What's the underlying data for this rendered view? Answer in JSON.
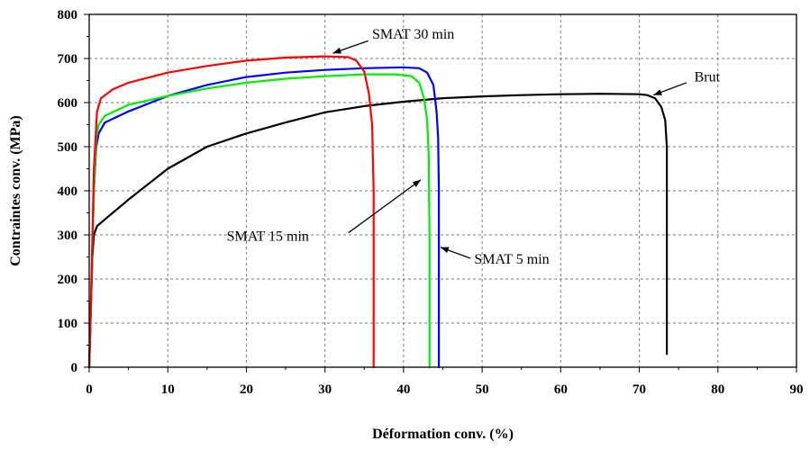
{
  "chart_data": {
    "type": "line",
    "title": "",
    "xlabel": "Déformation conv. (%)",
    "ylabel": "Contraintes conv. (MPa)",
    "xlim": [
      0,
      90
    ],
    "ylim": [
      0,
      800
    ],
    "xticks": [
      0,
      10,
      20,
      30,
      40,
      50,
      60,
      70,
      80,
      90
    ],
    "yticks": [
      0,
      100,
      200,
      300,
      400,
      500,
      600,
      700,
      800
    ],
    "grid": true,
    "series": [
      {
        "name": "Brut",
        "color": "#000000",
        "points": [
          [
            0,
            0
          ],
          [
            0.2,
            120
          ],
          [
            0.4,
            250
          ],
          [
            0.6,
            300
          ],
          [
            1,
            320
          ],
          [
            2,
            335
          ],
          [
            5,
            380
          ],
          [
            10,
            450
          ],
          [
            15,
            500
          ],
          [
            20,
            530
          ],
          [
            25,
            555
          ],
          [
            30,
            578
          ],
          [
            35,
            592
          ],
          [
            40,
            602
          ],
          [
            45,
            610
          ],
          [
            50,
            614
          ],
          [
            55,
            617
          ],
          [
            60,
            619
          ],
          [
            65,
            620
          ],
          [
            70,
            619
          ],
          [
            71,
            617
          ],
          [
            72,
            610
          ],
          [
            72.8,
            590
          ],
          [
            73.3,
            560
          ],
          [
            73.5,
            500
          ],
          [
            73.5,
            300
          ],
          [
            73.5,
            80
          ],
          [
            73.5,
            30
          ]
        ]
      },
      {
        "name": "SMAT 5 min",
        "color": "#0000ff",
        "points": [
          [
            0,
            0
          ],
          [
            0.3,
            200
          ],
          [
            0.6,
            400
          ],
          [
            0.9,
            500
          ],
          [
            1.2,
            530
          ],
          [
            2,
            555
          ],
          [
            5,
            580
          ],
          [
            10,
            615
          ],
          [
            15,
            640
          ],
          [
            20,
            658
          ],
          [
            25,
            668
          ],
          [
            30,
            674
          ],
          [
            35,
            678
          ],
          [
            40,
            680
          ],
          [
            42,
            678
          ],
          [
            43,
            668
          ],
          [
            43.8,
            640
          ],
          [
            44.2,
            580
          ],
          [
            44.4,
            520
          ],
          [
            44.5,
            400
          ],
          [
            44.5,
            200
          ],
          [
            44.5,
            0
          ]
        ]
      },
      {
        "name": "SMAT 15 min",
        "color": "#00ee00",
        "points": [
          [
            0,
            0
          ],
          [
            0.3,
            200
          ],
          [
            0.6,
            400
          ],
          [
            0.9,
            520
          ],
          [
            1.2,
            550
          ],
          [
            2,
            570
          ],
          [
            5,
            595
          ],
          [
            10,
            615
          ],
          [
            15,
            632
          ],
          [
            20,
            645
          ],
          [
            25,
            654
          ],
          [
            30,
            660
          ],
          [
            35,
            664
          ],
          [
            39,
            664
          ],
          [
            41,
            660
          ],
          [
            42,
            645
          ],
          [
            42.6,
            610
          ],
          [
            43,
            560
          ],
          [
            43.2,
            480
          ],
          [
            43.3,
            300
          ],
          [
            43.3,
            0
          ]
        ]
      },
      {
        "name": "SMAT 30 min",
        "color": "#ff0000",
        "points": [
          [
            0,
            0
          ],
          [
            0.3,
            200
          ],
          [
            0.6,
            450
          ],
          [
            1,
            580
          ],
          [
            1.5,
            610
          ],
          [
            3,
            630
          ],
          [
            5,
            645
          ],
          [
            10,
            668
          ],
          [
            15,
            683
          ],
          [
            20,
            695
          ],
          [
            25,
            702
          ],
          [
            30,
            705
          ],
          [
            33,
            703
          ],
          [
            34,
            695
          ],
          [
            35,
            670
          ],
          [
            35.6,
            620
          ],
          [
            36,
            550
          ],
          [
            36.2,
            400
          ],
          [
            36.2,
            200
          ],
          [
            36.2,
            0
          ]
        ]
      }
    ],
    "annotations": [
      {
        "text": "SMAT 30 min",
        "label_x": 36,
        "label_y": 745,
        "arrow_to": [
          31,
          712
        ],
        "label_anchor": "start",
        "arrow_from": [
          35.5,
          740
        ]
      },
      {
        "text": "Brut",
        "label_x": 77,
        "label_y": 648,
        "arrow_to": [
          71.8,
          617
        ],
        "label_anchor": "start",
        "arrow_from": [
          76,
          645
        ]
      },
      {
        "text": "SMAT 15 min",
        "label_x": 17.5,
        "label_y": 287,
        "arrow_to": [
          42.2,
          425
        ],
        "label_anchor": "start",
        "arrow_from": [
          33,
          305
        ]
      },
      {
        "text": "SMAT 5 min",
        "label_x": 49,
        "label_y": 235,
        "arrow_to": [
          44.7,
          272
        ],
        "label_anchor": "start",
        "arrow_from": [
          48.5,
          247
        ]
      }
    ]
  }
}
